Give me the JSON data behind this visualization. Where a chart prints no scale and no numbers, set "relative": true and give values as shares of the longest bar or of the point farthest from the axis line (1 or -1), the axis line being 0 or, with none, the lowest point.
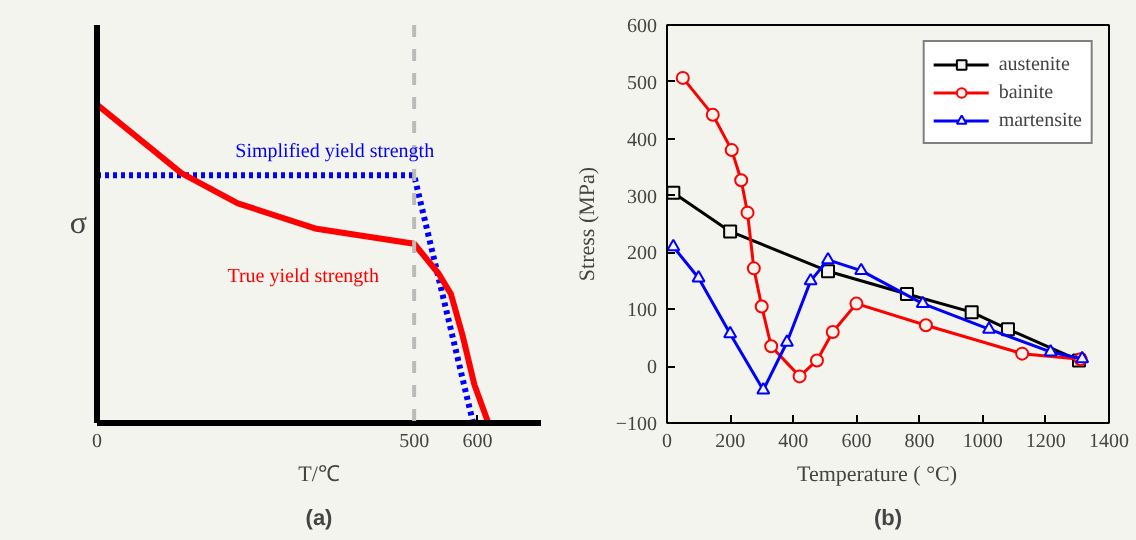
{
  "chart_data": [
    {
      "type": "line",
      "relative": true,
      "ylabel": "σ",
      "xlabel": "T/℃",
      "xlim": [
        0,
        700
      ],
      "xticks": [
        0,
        500,
        600
      ],
      "grid": false,
      "legend": false,
      "marker": "none",
      "annotations": [
        "(a)"
      ],
      "ref_lines": [
        {
          "axis": "x",
          "value": 500,
          "color": "#bbbbbb",
          "line_style": "dashed"
        }
      ],
      "series": [
        {
          "name": "Simplified yield strength",
          "color": "#0000ff",
          "line_style": "dotted",
          "x": [
            0,
            500,
            593
          ],
          "values": [
            0.778,
            0.778,
            0
          ]
        },
        {
          "name": "True yield strength",
          "color": "#ff0000",
          "line_style": "solid",
          "x": [
            0,
            133,
            222,
            346,
            500,
            539,
            558,
            576,
            595,
            617
          ],
          "values": [
            1.0,
            0.785,
            0.69,
            0.61,
            0.563,
            0.468,
            0.405,
            0.278,
            0.12,
            0
          ]
        }
      ]
    },
    {
      "type": "line",
      "xlabel": "Temperature (     °C)",
      "ylabel": "Stress (MPa)",
      "xlim": [
        0,
        1400
      ],
      "xticks": [
        0,
        200,
        400,
        600,
        800,
        1000,
        1200,
        1400
      ],
      "ylim": [
        -100,
        600
      ],
      "yticks": [
        -100,
        0,
        100,
        200,
        300,
        400,
        500,
        600
      ],
      "grid": false,
      "legend": "top right",
      "annotations": [
        "(b)"
      ],
      "series": [
        {
          "name": "austenite",
          "color": "#000000",
          "marker": "square",
          "x": [
            20,
            200,
            510,
            760,
            965,
            1080,
            1305
          ],
          "values": [
            305,
            237,
            167,
            127,
            95,
            65,
            10
          ]
        },
        {
          "name": "bainite",
          "color": "#ff0000",
          "marker": "circle",
          "x": [
            50,
            145,
            205,
            235,
            255,
            275,
            300,
            330,
            420,
            475,
            525,
            600,
            820,
            1125,
            1310
          ],
          "values": [
            507,
            442,
            380,
            327,
            270,
            172,
            105,
            35,
            -18,
            10,
            60,
            110,
            72,
            22,
            12
          ]
        },
        {
          "name": "martensite",
          "color": "#0000ff",
          "marker": "triangle",
          "x": [
            20,
            100,
            200,
            305,
            380,
            455,
            510,
            615,
            810,
            1020,
            1215,
            1315
          ],
          "values": [
            210,
            155,
            57,
            -42,
            42,
            150,
            187,
            168,
            110,
            65,
            25,
            13
          ]
        }
      ]
    }
  ]
}
